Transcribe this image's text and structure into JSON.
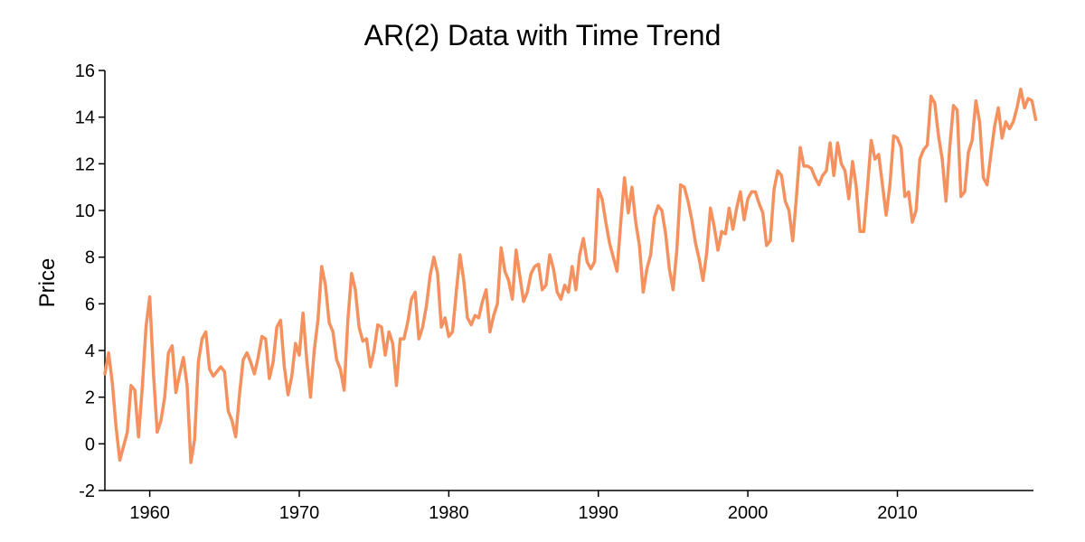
{
  "chart_data": {
    "type": "line",
    "title": "AR(2) Data with Time Trend",
    "xlabel": "",
    "ylabel": "Price",
    "xlim": [
      1957,
      2019.1
    ],
    "ylim": [
      -2,
      16
    ],
    "x_ticks": [
      1960,
      1970,
      1980,
      1990,
      2000,
      2010
    ],
    "y_ticks": [
      -2,
      0,
      2,
      4,
      6,
      8,
      10,
      12,
      14,
      16
    ],
    "grid": false,
    "legend": "none",
    "series": [
      {
        "color": "#f4915e",
        "x_start": 1957,
        "x_step": 0.25,
        "values": [
          3.0,
          3.9,
          2.6,
          0.7,
          -0.7,
          -0.1,
          0.5,
          2.5,
          2.3,
          0.3,
          2.4,
          5.0,
          6.3,
          3.0,
          0.5,
          1.0,
          2.0,
          3.9,
          4.2,
          2.2,
          3.0,
          3.7,
          2.5,
          -0.8,
          0.2,
          3.5,
          4.5,
          4.8,
          3.2,
          2.9,
          3.1,
          3.3,
          3.1,
          1.4,
          1.0,
          0.3,
          2.1,
          3.6,
          3.9,
          3.5,
          3.0,
          3.7,
          4.6,
          4.5,
          2.8,
          3.5,
          5.0,
          5.3,
          3.3,
          2.1,
          2.9,
          4.3,
          3.8,
          5.6,
          3.6,
          2.0,
          4.0,
          5.3,
          7.6,
          6.8,
          5.2,
          4.8,
          3.6,
          3.2,
          2.3,
          5.3,
          7.3,
          6.6,
          5.0,
          4.4,
          4.5,
          3.3,
          4.0,
          5.1,
          5.0,
          3.8,
          4.8,
          4.3,
          2.5,
          4.5,
          4.5,
          5.2,
          6.2,
          6.5,
          4.5,
          5.0,
          5.9,
          7.2,
          8.0,
          7.3,
          5.0,
          5.4,
          4.6,
          4.8,
          6.5,
          8.1,
          7.0,
          5.4,
          5.1,
          5.5,
          5.4,
          6.1,
          6.6,
          4.8,
          5.5,
          6.0,
          8.4,
          7.4,
          7.0,
          6.2,
          8.3,
          7.2,
          6.1,
          6.5,
          7.3,
          7.6,
          7.7,
          6.6,
          6.8,
          8.1,
          7.5,
          6.5,
          6.2,
          6.8,
          6.5,
          7.6,
          6.6,
          8.1,
          8.8,
          7.8,
          7.5,
          7.8,
          10.9,
          10.5,
          9.5,
          8.6,
          8.0,
          7.4,
          9.5,
          11.4,
          9.9,
          11.0,
          9.5,
          8.5,
          6.5,
          7.5,
          8.1,
          9.7,
          10.2,
          10.0,
          9.0,
          7.5,
          6.6,
          8.3,
          11.1,
          11.0,
          10.4,
          9.6,
          8.6,
          7.9,
          7.0,
          8.2,
          10.1,
          9.3,
          8.3,
          9.1,
          9.0,
          10.1,
          9.2,
          10.1,
          10.8,
          9.6,
          10.5,
          10.8,
          10.8,
          10.3,
          9.9,
          8.5,
          8.7,
          10.9,
          11.7,
          11.5,
          10.4,
          10.0,
          8.7,
          10.6,
          12.7,
          11.9,
          11.9,
          11.8,
          11.4,
          11.1,
          11.5,
          11.7,
          12.9,
          11.5,
          12.9,
          12.0,
          11.7,
          10.5,
          12.1,
          11.0,
          9.1,
          9.1,
          11.0,
          13.0,
          12.2,
          12.4,
          11.1,
          9.8,
          11.1,
          13.2,
          13.1,
          12.7,
          10.6,
          10.8,
          9.5,
          10.0,
          12.2,
          12.6,
          12.8,
          14.9,
          14.6,
          13.2,
          12.2,
          10.4,
          12.7,
          14.5,
          14.3,
          10.6,
          10.8,
          12.5,
          13.0,
          14.7,
          13.8,
          11.4,
          11.1,
          12.4,
          13.6,
          14.4,
          13.1,
          13.8,
          13.5,
          13.8,
          14.4,
          15.2,
          14.4,
          14.8,
          14.7,
          13.9
        ]
      }
    ]
  }
}
